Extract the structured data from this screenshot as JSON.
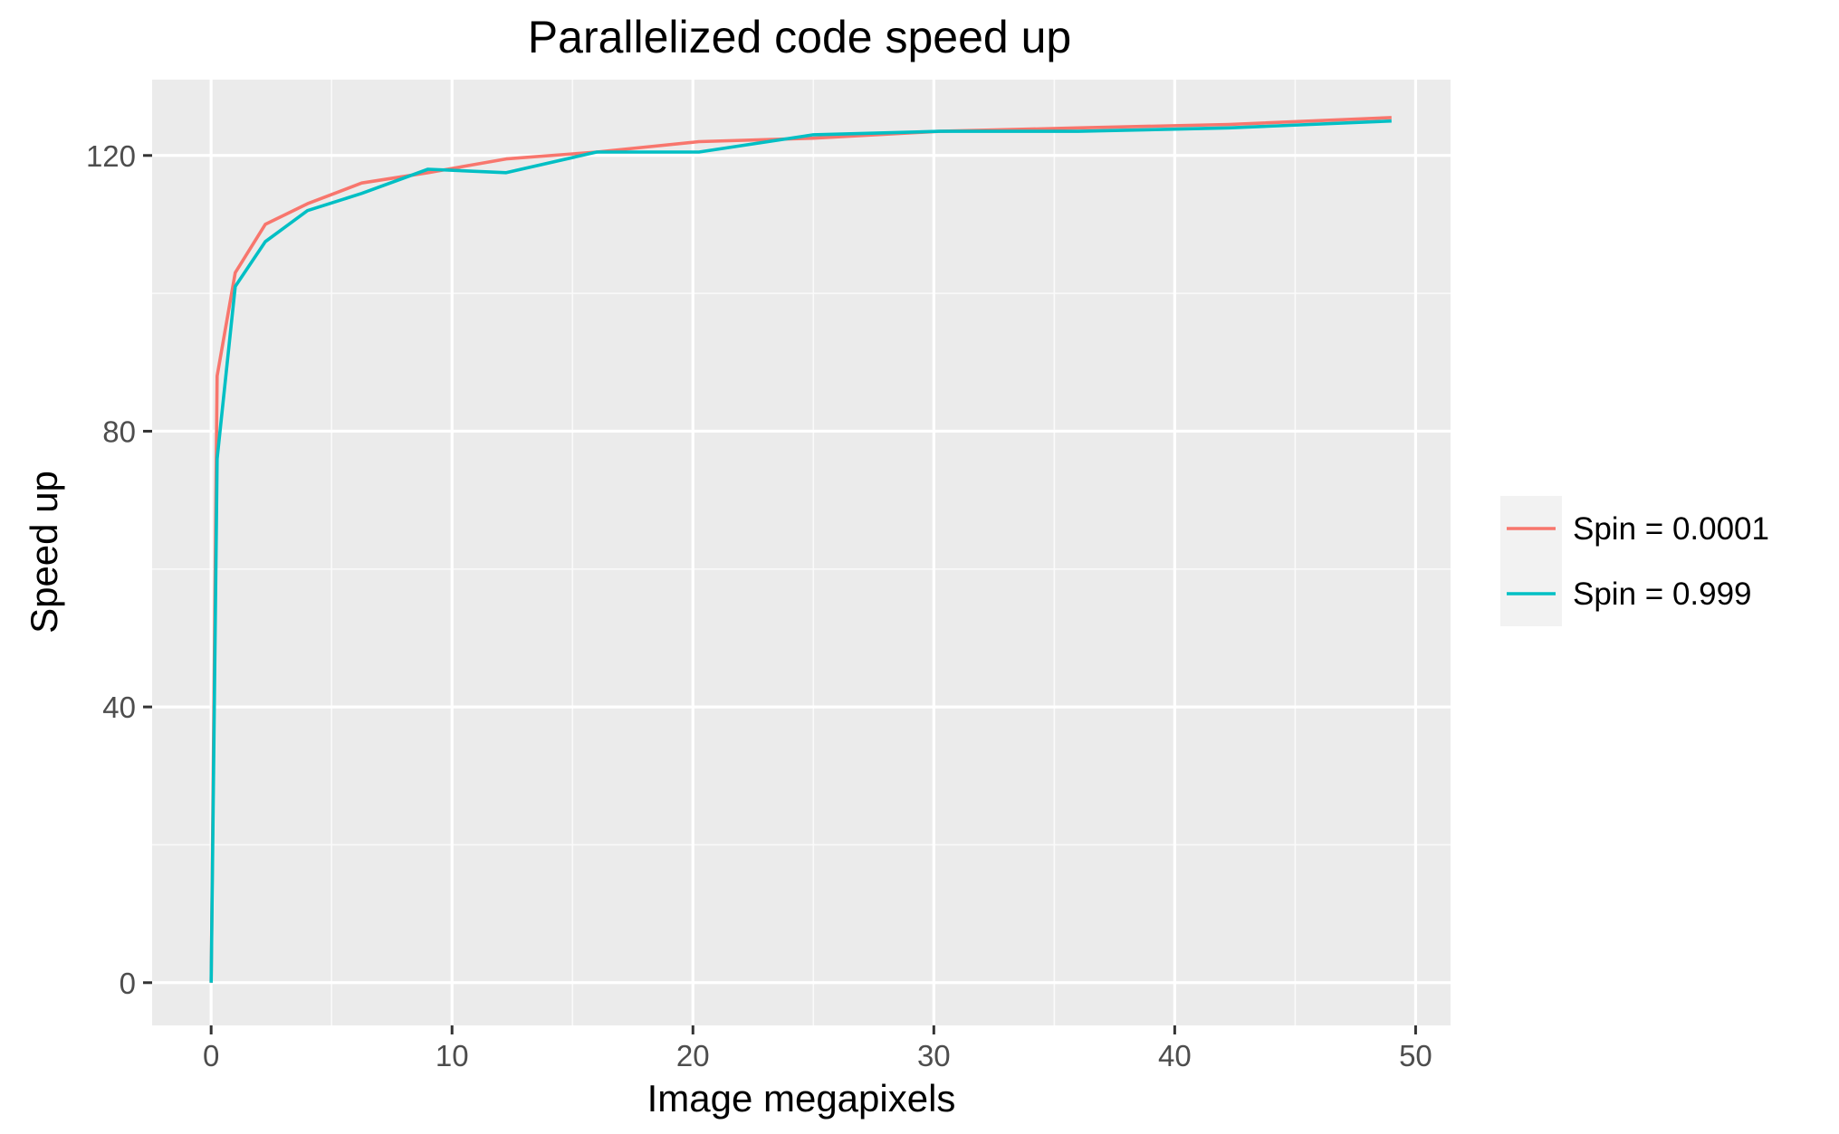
{
  "chart_data": {
    "type": "line",
    "title": "Parallelized code speed up",
    "xlabel": "Image megapixels",
    "ylabel": "Speed up",
    "xlim": [
      -2.45,
      51.45
    ],
    "ylim": [
      -6.2,
      131.0
    ],
    "x_ticks": [
      0,
      10,
      20,
      30,
      40,
      50
    ],
    "x_minor_ticks": [
      5,
      15,
      25,
      35,
      45
    ],
    "y_ticks": [
      0,
      40,
      80,
      120
    ],
    "y_minor_ticks": [
      20,
      60,
      100
    ],
    "x_tick_labels": [
      "0",
      "10",
      "20",
      "30",
      "40",
      "50"
    ],
    "y_tick_labels": [
      "0",
      "40",
      "80",
      "120"
    ],
    "grid": true,
    "legend_position": "right",
    "series": [
      {
        "name": "Spin = 0.0001",
        "color": "#F8766D",
        "x": [
          0,
          0.25,
          1,
          2.25,
          4,
          6.25,
          9,
          12.25,
          16,
          20.25,
          25,
          30.25,
          36,
          42.25,
          49
        ],
        "y": [
          0,
          88,
          103,
          110,
          113,
          116,
          117.5,
          119.5,
          120.5,
          122,
          122.5,
          123.5,
          124,
          124.5,
          125.5
        ]
      },
      {
        "name": "Spin = 0.999",
        "color": "#00BFC4",
        "x": [
          0,
          0.25,
          1,
          2.25,
          4,
          6.25,
          9,
          12.25,
          16,
          20.25,
          25,
          30.25,
          36,
          42.25,
          49
        ],
        "y": [
          0,
          76,
          101,
          107.5,
          112,
          114.5,
          118,
          117.5,
          120.5,
          120.5,
          123,
          123.5,
          123.5,
          124,
          125
        ]
      }
    ]
  }
}
